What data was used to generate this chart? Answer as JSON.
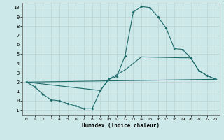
{
  "xlabel": "Humidex (Indice chaleur)",
  "xlim": [
    -0.5,
    23.5
  ],
  "ylim": [
    -1.5,
    10.5
  ],
  "yticks": [
    -1,
    0,
    1,
    2,
    3,
    4,
    5,
    6,
    7,
    8,
    9,
    10
  ],
  "xticks": [
    0,
    1,
    2,
    3,
    4,
    5,
    6,
    7,
    8,
    9,
    10,
    11,
    12,
    13,
    14,
    15,
    16,
    17,
    18,
    19,
    20,
    21,
    22,
    23
  ],
  "bg_color": "#cde8e8",
  "grid_color": "#c0d8d8",
  "line_color": "#1e6b6b",
  "line1_x": [
    0,
    1,
    2,
    3,
    4,
    5,
    6,
    7,
    8,
    9,
    10,
    11,
    12,
    13,
    14,
    15,
    16,
    17,
    18,
    19,
    20,
    21,
    22,
    23
  ],
  "line1_y": [
    2.0,
    1.5,
    0.7,
    0.1,
    0.0,
    -0.3,
    -0.55,
    -0.85,
    -0.85,
    1.1,
    2.3,
    2.6,
    4.8,
    9.5,
    10.1,
    10.0,
    9.0,
    7.8,
    5.6,
    5.5,
    4.6,
    3.2,
    2.7,
    2.3
  ],
  "line2_x": [
    0,
    9,
    10,
    12,
    14,
    19,
    20,
    21,
    22,
    23
  ],
  "line2_y": [
    2.0,
    1.1,
    2.3,
    3.3,
    4.7,
    4.6,
    4.6,
    3.2,
    2.7,
    2.3
  ],
  "line3_x": [
    0,
    23
  ],
  "line3_y": [
    2.0,
    2.3
  ]
}
